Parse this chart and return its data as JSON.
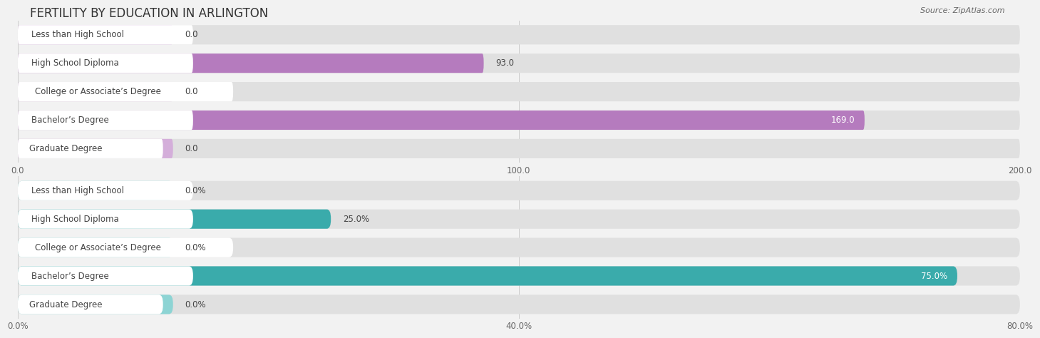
{
  "title": "FERTILITY BY EDUCATION IN ARLINGTON",
  "source": "Source: ZipAtlas.com",
  "top_chart": {
    "categories": [
      "Less than High School",
      "High School Diploma",
      "College or Associate’s Degree",
      "Bachelor’s Degree",
      "Graduate Degree"
    ],
    "values": [
      0.0,
      93.0,
      0.0,
      169.0,
      0.0
    ],
    "xlim": [
      0,
      200
    ],
    "xticks": [
      0.0,
      100.0,
      200.0
    ],
    "xtick_labels": [
      "0.0",
      "100.0",
      "200.0"
    ],
    "bar_color_active": "#b57bbe",
    "bar_color_inactive": "#d4aeda",
    "bar_bg_color": "#e8e8e8",
    "label_color": "#555555",
    "value_color_inside": "#ffffff",
    "value_color_outside": "#555555"
  },
  "bottom_chart": {
    "categories": [
      "Less than High School",
      "High School Diploma",
      "College or Associate’s Degree",
      "Bachelor’s Degree",
      "Graduate Degree"
    ],
    "values": [
      0.0,
      25.0,
      0.0,
      75.0,
      0.0
    ],
    "xlim": [
      0,
      80
    ],
    "xticks": [
      0.0,
      40.0,
      80.0
    ],
    "xtick_labels": [
      "0.0%",
      "40.0%",
      "80.0%"
    ],
    "bar_color_active": "#3aabab",
    "bar_color_inactive": "#8dd4d4",
    "bar_bg_color": "#e8e8e8",
    "label_color": "#555555",
    "value_color_inside": "#ffffff",
    "value_color_outside": "#555555"
  },
  "background_color": "#f2f2f2",
  "chart_bg_color": "#f2f2f2",
  "title_fontsize": 12,
  "label_fontsize": 8.5,
  "value_fontsize": 8.5,
  "tick_fontsize": 8.5
}
